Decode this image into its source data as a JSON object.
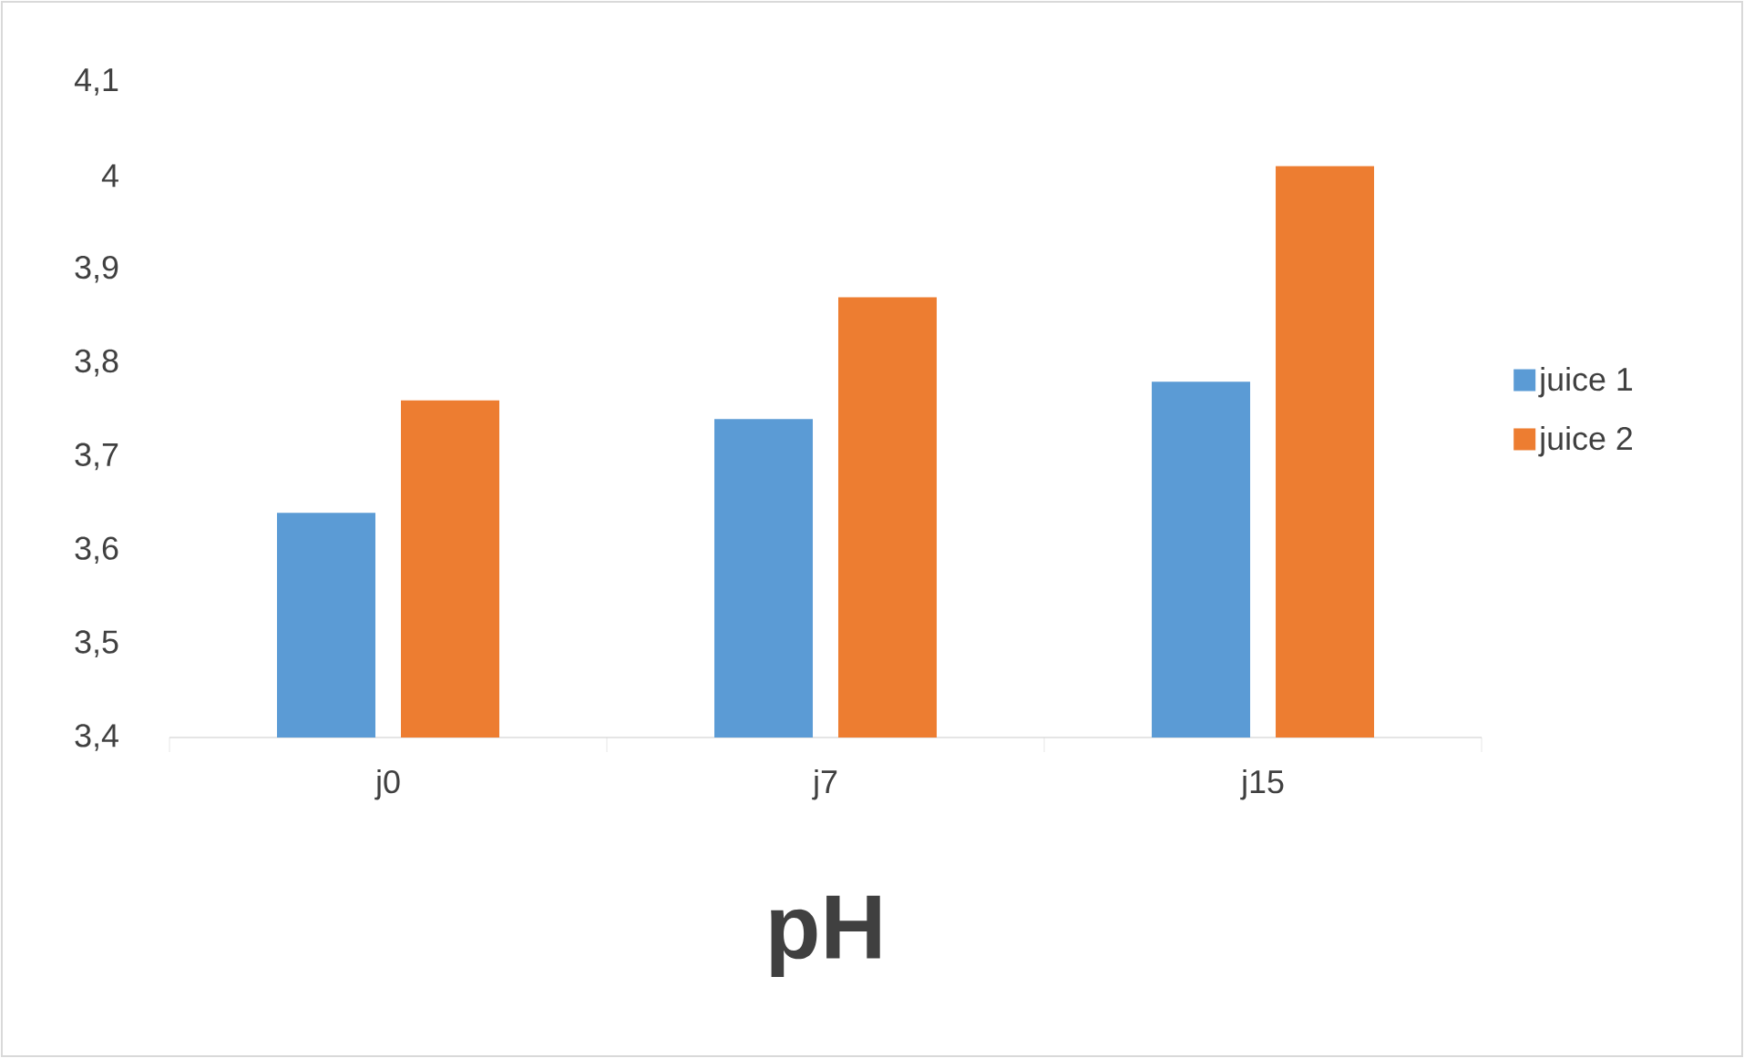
{
  "chart_data": {
    "type": "bar",
    "title": "pH",
    "categories": [
      "j0",
      "j7",
      "j15"
    ],
    "series": [
      {
        "name": "juice 1",
        "color": "#5b9bd5",
        "values": [
          3.64,
          3.74,
          3.78
        ]
      },
      {
        "name": "juice 2",
        "color": "#ed7d31",
        "values": [
          3.76,
          3.87,
          4.01
        ]
      }
    ],
    "ylim": [
      3.4,
      4.1
    ],
    "yticks": [
      {
        "value": 3.4,
        "label": "3,4"
      },
      {
        "value": 3.5,
        "label": "3,5"
      },
      {
        "value": 3.6,
        "label": "3,6"
      },
      {
        "value": 3.7,
        "label": "3,7"
      },
      {
        "value": 3.8,
        "label": "3,8"
      },
      {
        "value": 3.9,
        "label": "3,9"
      },
      {
        "value": 4,
        "label": "4"
      },
      {
        "value": 4.1,
        "label": "4,1"
      }
    ],
    "legend": "right"
  }
}
